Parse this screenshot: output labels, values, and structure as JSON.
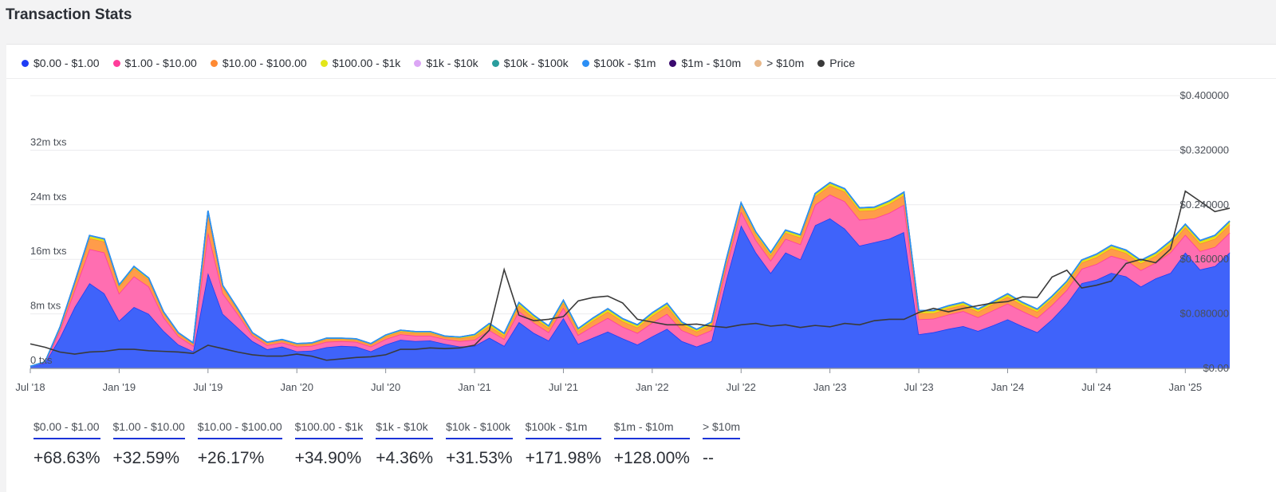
{
  "page": {
    "title": "Transaction Stats"
  },
  "legend": [
    {
      "label": "$0.00 - $1.00",
      "color": "#1f3df5"
    },
    {
      "label": "$1.00 - $10.00",
      "color": "#ff3d9a"
    },
    {
      "label": "$10.00 - $100.00",
      "color": "#ff8a33"
    },
    {
      "label": "$100.00 - $1k",
      "color": "#e3e61a"
    },
    {
      "label": "$1k - $10k",
      "color": "#dca6f5"
    },
    {
      "label": "$10k - $100k",
      "color": "#2a9d9d"
    },
    {
      "label": "$100k - $1m",
      "color": "#2b8ff5"
    },
    {
      "label": "$1m - $10m",
      "color": "#3a0a6e"
    },
    {
      "label": "> $10m",
      "color": "#e8b88a"
    },
    {
      "label": "Price",
      "color": "#3a3a3a"
    }
  ],
  "chart_data": {
    "type": "area",
    "stacked": true,
    "x": [
      "2018-07",
      "2018-08",
      "2018-09",
      "2018-10",
      "2018-11",
      "2018-12",
      "2019-01",
      "2019-02",
      "2019-03",
      "2019-04",
      "2019-05",
      "2019-06",
      "2019-07",
      "2019-08",
      "2019-09",
      "2019-10",
      "2019-11",
      "2019-12",
      "2020-01",
      "2020-02",
      "2020-03",
      "2020-04",
      "2020-05",
      "2020-06",
      "2020-07",
      "2020-08",
      "2020-09",
      "2020-10",
      "2020-11",
      "2020-12",
      "2021-01",
      "2021-02",
      "2021-03",
      "2021-04",
      "2021-05",
      "2021-06",
      "2021-07",
      "2021-08",
      "2021-09",
      "2021-10",
      "2021-11",
      "2021-12",
      "2022-01",
      "2022-02",
      "2022-03",
      "2022-04",
      "2022-05",
      "2022-06",
      "2022-07",
      "2022-08",
      "2022-09",
      "2022-10",
      "2022-11",
      "2022-12",
      "2023-01",
      "2023-02",
      "2023-03",
      "2023-04",
      "2023-05",
      "2023-06",
      "2023-07",
      "2023-08",
      "2023-09",
      "2023-10",
      "2023-11",
      "2023-12",
      "2024-01",
      "2024-02",
      "2024-03",
      "2024-04",
      "2024-05",
      "2024-06",
      "2024-07",
      "2024-08",
      "2024-09",
      "2024-10",
      "2024-11",
      "2024-12",
      "2025-01",
      "2025-02",
      "2025-03",
      "2025-04"
    ],
    "x_tick_labels": [
      "Jul '18",
      "Jan '19",
      "Jul '19",
      "Jan '20",
      "Jul '20",
      "Jan '21",
      "Jul '21",
      "Jan '22",
      "Jul '22",
      "Jan '23",
      "Jul '23",
      "Jan '24",
      "Jul '24",
      "Jan '25"
    ],
    "x_tick_values": [
      "2018-07",
      "2019-01",
      "2019-07",
      "2020-01",
      "2020-07",
      "2021-01",
      "2021-07",
      "2022-01",
      "2022-07",
      "2023-01",
      "2023-07",
      "2024-01",
      "2024-07",
      "2025-01"
    ],
    "y_left": {
      "ticks": [
        0,
        8,
        16,
        24,
        32
      ],
      "tick_labels": [
        "0 txs",
        "8m txs",
        "16m txs",
        "24m txs",
        "32m txs"
      ],
      "ylim": [
        0,
        40
      ],
      "unit": "m txs"
    },
    "y_right": {
      "ticks": [
        0,
        0.08,
        0.16,
        0.24,
        0.32,
        0.4
      ],
      "tick_labels": [
        "$0.00",
        "$0.080000",
        "$0.160000",
        "$0.240000",
        "$0.320000",
        "$0.400000"
      ],
      "ylim": [
        0,
        0.4
      ]
    },
    "series": [
      {
        "name": "$0.00 - $1.00",
        "color": "#3f63fa",
        "line": "#1f3df5",
        "values": [
          0.3,
          0.8,
          4.5,
          9,
          12.5,
          11,
          7,
          9,
          8,
          5.5,
          3.5,
          2.5,
          14,
          8,
          6,
          4,
          2.8,
          3.2,
          2.5,
          2.6,
          3.1,
          3.3,
          3.2,
          2.5,
          3.5,
          4.2,
          4.0,
          4.1,
          3.6,
          3.2,
          3.3,
          4.5,
          3.3,
          6.8,
          5.2,
          4.1,
          7.4,
          3.6,
          4.5,
          5.4,
          4.4,
          3.5,
          4.7,
          5.8,
          4.0,
          3.2,
          4.0,
          13.0,
          21.0,
          17.0,
          14.0,
          17.0,
          16.0,
          21.0,
          22.0,
          20.5,
          18.0,
          18.5,
          19.0,
          20.0,
          5.0,
          5.3,
          5.8,
          6.2,
          5.5,
          6.3,
          7.2,
          6.2,
          5.3,
          7.2,
          9.5,
          12.5,
          13.0,
          14.0,
          13.5,
          12.0,
          13.2,
          14.0,
          17.0,
          14.5,
          15.0,
          17.0
        ]
      },
      {
        "name": "$1.00 - $10.00",
        "color": "#ff6eb1",
        "line": "#ff3d9a",
        "values": [
          0.0,
          0.1,
          1.0,
          2.5,
          5.0,
          6.0,
          4.0,
          4.5,
          4.0,
          2.0,
          1.2,
          0.8,
          6.0,
          3.0,
          2.0,
          0.8,
          0.6,
          0.6,
          0.7,
          0.7,
          0.8,
          0.7,
          0.7,
          0.7,
          0.8,
          0.8,
          0.8,
          0.7,
          0.7,
          0.8,
          0.9,
          1.1,
          1.0,
          1.6,
          1.5,
          1.2,
          1.5,
          1.3,
          1.7,
          2.0,
          1.7,
          1.7,
          2.0,
          2.2,
          1.6,
          1.5,
          1.6,
          1.8,
          2.0,
          1.8,
          1.8,
          2.0,
          2.2,
          3.0,
          3.5,
          4.0,
          3.8,
          3.5,
          3.8,
          4.0,
          2.2,
          2.0,
          2.1,
          2.2,
          2.0,
          2.2,
          2.3,
          2.2,
          2.1,
          2.1,
          2.0,
          2.1,
          2.3,
          2.5,
          2.4,
          2.4,
          2.3,
          3.0,
          2.6,
          2.7,
          2.8,
          2.9
        ]
      },
      {
        "name": "$10.00 - $100.00",
        "color": "#ff9c4a",
        "line": "#ff8a33",
        "values": [
          0.0,
          0.05,
          0.4,
          0.9,
          1.6,
          1.6,
          1.0,
          1.2,
          1.0,
          0.6,
          0.4,
          0.3,
          2.5,
          0.9,
          0.6,
          0.3,
          0.3,
          0.3,
          0.3,
          0.3,
          0.4,
          0.3,
          0.3,
          0.3,
          0.4,
          0.4,
          0.4,
          0.4,
          0.3,
          0.4,
          0.5,
          0.6,
          0.5,
          0.8,
          0.7,
          0.6,
          0.7,
          0.6,
          0.8,
          0.9,
          0.8,
          0.8,
          1.0,
          1.1,
          0.8,
          0.7,
          0.8,
          0.8,
          0.9,
          0.8,
          0.8,
          0.9,
          1.0,
          1.2,
          1.3,
          1.4,
          1.3,
          1.2,
          1.3,
          1.4,
          0.9,
          0.8,
          0.9,
          0.9,
          0.8,
          0.9,
          1.0,
          0.9,
          0.9,
          0.9,
          0.9,
          0.9,
          1.0,
          1.1,
          1.0,
          1.0,
          1.0,
          1.2,
          1.1,
          1.1,
          1.2,
          1.2
        ]
      },
      {
        "name": "$100.00 - $1k",
        "color": "#e3e61a",
        "line": "#d4d600",
        "values": [
          0.0,
          0.02,
          0.1,
          0.2,
          0.3,
          0.3,
          0.2,
          0.2,
          0.2,
          0.15,
          0.1,
          0.1,
          0.5,
          0.2,
          0.15,
          0.1,
          0.1,
          0.1,
          0.1,
          0.1,
          0.1,
          0.1,
          0.1,
          0.1,
          0.15,
          0.15,
          0.15,
          0.15,
          0.1,
          0.15,
          0.2,
          0.3,
          0.25,
          0.35,
          0.3,
          0.25,
          0.3,
          0.25,
          0.3,
          0.35,
          0.3,
          0.3,
          0.35,
          0.35,
          0.3,
          0.25,
          0.3,
          0.3,
          0.3,
          0.3,
          0.3,
          0.3,
          0.3,
          0.35,
          0.35,
          0.35,
          0.35,
          0.35,
          0.35,
          0.35,
          0.3,
          0.3,
          0.3,
          0.3,
          0.3,
          0.3,
          0.35,
          0.3,
          0.3,
          0.3,
          0.3,
          0.3,
          0.35,
          0.35,
          0.35,
          0.35,
          0.35,
          0.4,
          0.35,
          0.35,
          0.4,
          0.4
        ]
      },
      {
        "name": "$1k - $10k",
        "color": "#dca6f5",
        "line": "#c98af0",
        "values": [
          0,
          0,
          0.03,
          0.05,
          0.08,
          0.08,
          0.05,
          0.05,
          0.05,
          0.04,
          0.03,
          0.03,
          0.1,
          0.05,
          0.04,
          0.03,
          0.03,
          0.03,
          0.03,
          0.03,
          0.03,
          0.03,
          0.03,
          0.03,
          0.04,
          0.04,
          0.04,
          0.04,
          0.03,
          0.04,
          0.06,
          0.08,
          0.07,
          0.1,
          0.08,
          0.07,
          0.08,
          0.07,
          0.08,
          0.09,
          0.08,
          0.08,
          0.09,
          0.09,
          0.08,
          0.07,
          0.08,
          0.08,
          0.08,
          0.08,
          0.08,
          0.08,
          0.08,
          0.09,
          0.09,
          0.09,
          0.09,
          0.09,
          0.09,
          0.09,
          0.08,
          0.08,
          0.08,
          0.08,
          0.08,
          0.08,
          0.09,
          0.08,
          0.08,
          0.08,
          0.08,
          0.08,
          0.09,
          0.09,
          0.09,
          0.09,
          0.09,
          0.1,
          0.09,
          0.09,
          0.1,
          0.1
        ]
      },
      {
        "name": "$10k - $100k",
        "color": "#2a9d9d",
        "line": "#2a9d9d",
        "values": [
          0,
          0,
          0.01,
          0.01,
          0.02,
          0.02,
          0.01,
          0.01,
          0.01,
          0.01,
          0.01,
          0.01,
          0.02,
          0.01,
          0.01,
          0.01,
          0.01,
          0.01,
          0.01,
          0.01,
          0.01,
          0.01,
          0.01,
          0.01,
          0.01,
          0.01,
          0.01,
          0.01,
          0.01,
          0.01,
          0.01,
          0.02,
          0.02,
          0.02,
          0.02,
          0.02,
          0.02,
          0.02,
          0.02,
          0.02,
          0.02,
          0.02,
          0.02,
          0.02,
          0.02,
          0.02,
          0.02,
          0.02,
          0.02,
          0.02,
          0.02,
          0.02,
          0.02,
          0.02,
          0.02,
          0.02,
          0.02,
          0.02,
          0.02,
          0.02,
          0.02,
          0.02,
          0.02,
          0.02,
          0.02,
          0.02,
          0.02,
          0.02,
          0.02,
          0.02,
          0.02,
          0.02,
          0.02,
          0.02,
          0.02,
          0.02,
          0.02,
          0.02,
          0.02,
          0.02,
          0.02,
          0.02
        ]
      },
      {
        "name": "$100k - $1m",
        "color": "#2b8ff5",
        "line": "#2b8ff5",
        "values": [
          0,
          0,
          0.005,
          0.005,
          0.005,
          0.005,
          0.005,
          0.005,
          0.005,
          0.005,
          0.005,
          0.005,
          0.005,
          0.005,
          0.005,
          0.005,
          0.005,
          0.005,
          0.005,
          0.005,
          0.005,
          0.005,
          0.005,
          0.005,
          0.005,
          0.005,
          0.005,
          0.005,
          0.005,
          0.005,
          0.005,
          0.005,
          0.005,
          0.005,
          0.005,
          0.005,
          0.005,
          0.005,
          0.005,
          0.005,
          0.005,
          0.005,
          0.005,
          0.005,
          0.005,
          0.005,
          0.005,
          0.005,
          0.005,
          0.005,
          0.005,
          0.005,
          0.005,
          0.005,
          0.005,
          0.005,
          0.005,
          0.005,
          0.005,
          0.005,
          0.005,
          0.005,
          0.005,
          0.005,
          0.005,
          0.005,
          0.005,
          0.005,
          0.005,
          0.005,
          0.005,
          0.005,
          0.005,
          0.005,
          0.005,
          0.005,
          0.005,
          0.005,
          0.005,
          0.005,
          0.005,
          0.005
        ]
      }
    ],
    "price": {
      "name": "Price",
      "color": "#3a3a3a",
      "values": [
        0.036,
        0.031,
        0.024,
        0.021,
        0.024,
        0.025,
        0.028,
        0.028,
        0.026,
        0.025,
        0.024,
        0.022,
        0.034,
        0.029,
        0.024,
        0.02,
        0.018,
        0.018,
        0.021,
        0.018,
        0.012,
        0.014,
        0.016,
        0.017,
        0.02,
        0.028,
        0.028,
        0.03,
        0.029,
        0.03,
        0.034,
        0.056,
        0.145,
        0.078,
        0.07,
        0.072,
        0.076,
        0.099,
        0.104,
        0.106,
        0.096,
        0.072,
        0.068,
        0.064,
        0.064,
        0.065,
        0.062,
        0.06,
        0.064,
        0.066,
        0.062,
        0.064,
        0.06,
        0.063,
        0.061,
        0.066,
        0.064,
        0.07,
        0.072,
        0.072,
        0.082,
        0.088,
        0.083,
        0.088,
        0.092,
        0.096,
        0.098,
        0.105,
        0.104,
        0.134,
        0.144,
        0.118,
        0.122,
        0.128,
        0.154,
        0.16,
        0.155,
        0.175,
        0.26,
        0.245,
        0.23,
        0.235
      ]
    }
  },
  "stats": [
    {
      "label": "$0.00 - $1.00",
      "value": "+68.63%"
    },
    {
      "label": "$1.00 - $10.00",
      "value": "+32.59%"
    },
    {
      "label": "$10.00 - $100.00",
      "value": "+26.17%"
    },
    {
      "label": "$100.00 - $1k",
      "value": "+34.90%"
    },
    {
      "label": "$1k - $10k",
      "value": "+4.36%"
    },
    {
      "label": "$10k - $100k",
      "value": "+31.53%"
    },
    {
      "label": "$100k - $1m",
      "value": "+171.98%"
    },
    {
      "label": "$1m - $10m",
      "value": "+128.00%"
    },
    {
      "label": "> $10m",
      "value": "--"
    }
  ]
}
